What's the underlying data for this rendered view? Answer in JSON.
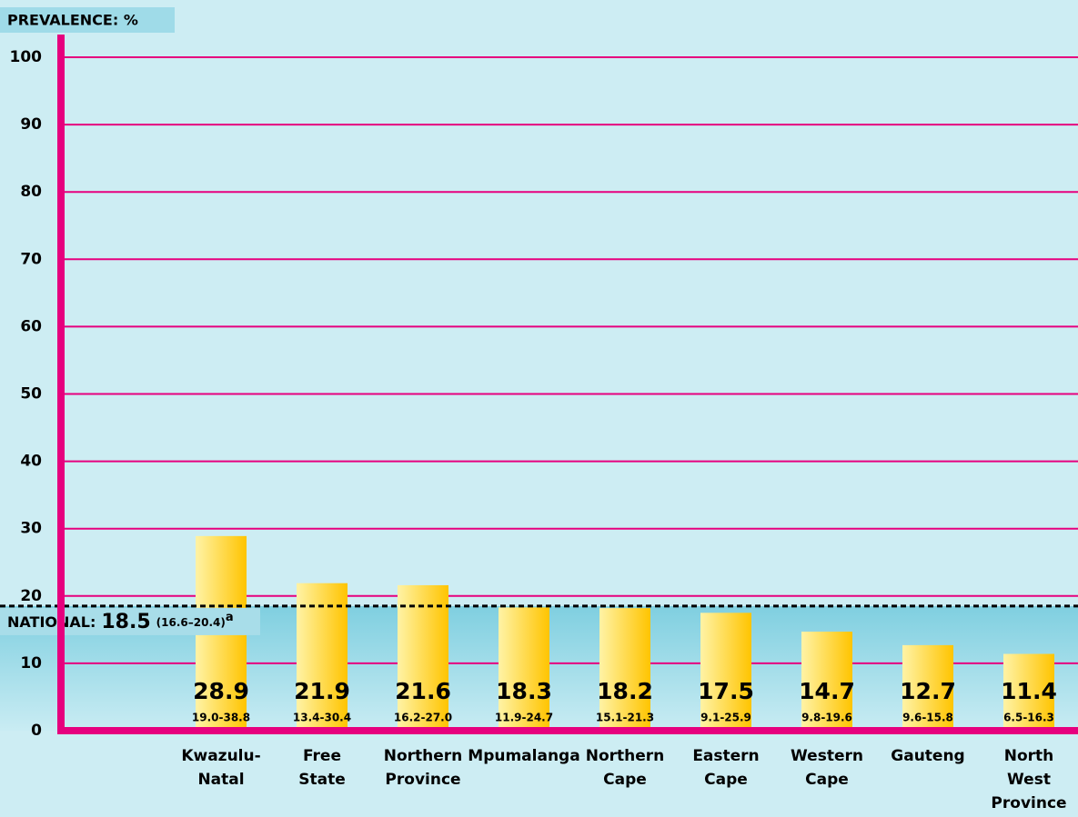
{
  "chart_data": {
    "type": "bar",
    "y_label": "PREVALENCE: %",
    "categories": [
      "Kwazulu-\nNatal",
      "Free\nState",
      "Northern\nProvince",
      "Mpumalanga",
      "Northern\nCape",
      "Eastern\nCape",
      "Western\nCape",
      "Gauteng",
      "North\nWest\nProvince"
    ],
    "values": [
      28.9,
      21.9,
      21.6,
      18.3,
      18.2,
      17.5,
      14.7,
      12.7,
      11.4
    ],
    "ranges": [
      "19.0-38.8",
      "13.4-30.4",
      "16.2-27.0",
      "11.9-24.7",
      "15.1-21.3",
      "9.1-25.9",
      "9.8-19.6",
      "9.6-15.8",
      "6.5-16.3"
    ],
    "national": {
      "label": "NATIONAL:",
      "value": 18.5,
      "range": "(16.6–20.4)",
      "note": "a"
    },
    "ylim": [
      0,
      100
    ],
    "yticks": [
      0,
      10,
      20,
      30,
      40,
      50,
      60,
      70,
      80,
      90,
      100
    ],
    "grid": true,
    "color": "#ffd21e",
    "axis_color": "#e6007e"
  }
}
